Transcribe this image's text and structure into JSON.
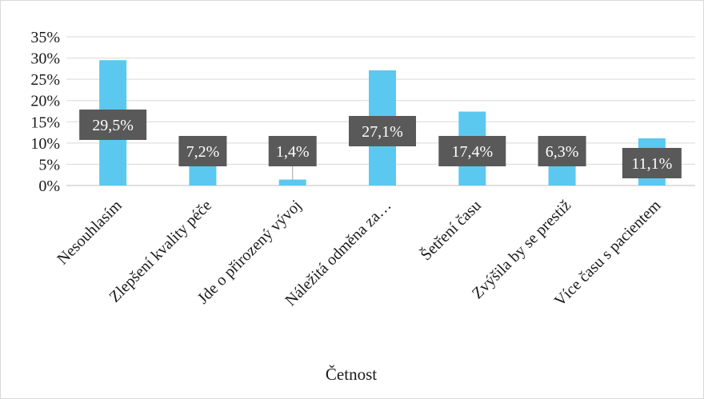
{
  "chart_data": {
    "type": "bar",
    "categories": [
      "Nesouhlasím",
      "Zlepšení kvality péče",
      "Jde o přirozený vývoj",
      "Náležitá odměna za…",
      "Šetření času",
      "Zvýšila by se prestiž",
      "Více času s pacientem"
    ],
    "values": [
      29.5,
      7.2,
      1.4,
      27.1,
      17.4,
      6.3,
      11.1
    ],
    "data_labels": [
      "29,5%",
      "7,2%",
      "1,4%",
      "27,1%",
      "17,4%",
      "6,3%",
      "11,1%"
    ],
    "yticks": [
      "0%",
      "5%",
      "10%",
      "15%",
      "20%",
      "25%",
      "30%",
      "35%"
    ],
    "ylim": [
      0,
      35
    ],
    "xlabel": "Četnost",
    "grid": true,
    "legend": "none",
    "colors": {
      "bar": "#5bc8f0",
      "label_bg": "#595959",
      "label_text": "#ffffff",
      "grid": "#d9d9d9",
      "leader": "#a6a6a6"
    }
  }
}
